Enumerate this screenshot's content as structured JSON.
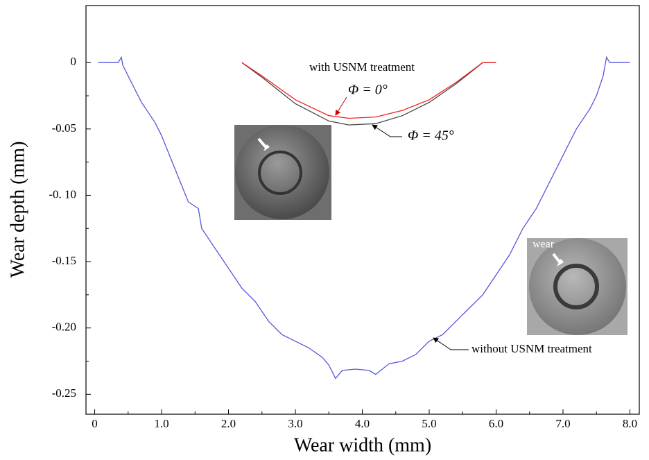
{
  "chart_data": {
    "type": "line",
    "xlabel": "Wear width (mm)",
    "ylabel": "Wear depth (mm)",
    "xlim": [
      -0.13,
      8.14
    ],
    "ylim": [
      -0.265,
      0.043
    ],
    "xticks": [
      0,
      {
        "value": 1,
        "label": "1.0"
      },
      {
        "value": 2,
        "label": "2.0"
      },
      {
        "value": 3,
        "label": "3.0"
      },
      {
        "value": 4,
        "label": "4.0"
      },
      {
        "value": 5,
        "label": "5.0"
      },
      {
        "value": 6,
        "label": "6.0"
      },
      {
        "value": 7,
        "label": "7.0"
      },
      {
        "value": 8,
        "label": "8.0"
      }
    ],
    "yticks": [
      0,
      -0.05,
      {
        "value": -0.1,
        "label": "-0. 10"
      },
      -0.15,
      {
        "value": -0.2,
        "label": "-0.20"
      },
      -0.25
    ],
    "series": [
      {
        "color": "#5555dd",
        "x": [
          0.05,
          0.35,
          0.4,
          0.42,
          0.6,
          0.7,
          0.9,
          1.0,
          1.2,
          1.4,
          1.55,
          1.6,
          1.8,
          2.0,
          2.2,
          2.4,
          2.6,
          2.8,
          3.0,
          3.2,
          3.4,
          3.5,
          3.6,
          3.7,
          3.9,
          4.1,
          4.2,
          4.4,
          4.6,
          4.8,
          5.0,
          5.2,
          5.4,
          5.6,
          5.8,
          6.0,
          6.2,
          6.4,
          6.6,
          6.8,
          7.0,
          7.2,
          7.4,
          7.5,
          7.6,
          7.65,
          7.7,
          8.0
        ],
        "values": [
          0,
          0,
          0.004,
          -0.002,
          -0.02,
          -0.03,
          -0.045,
          -0.055,
          -0.08,
          -0.105,
          -0.11,
          -0.125,
          -0.14,
          -0.155,
          -0.17,
          -0.18,
          -0.195,
          -0.205,
          -0.21,
          -0.215,
          -0.222,
          -0.228,
          -0.238,
          -0.232,
          -0.231,
          -0.232,
          -0.235,
          -0.227,
          -0.225,
          -0.22,
          -0.21,
          -0.205,
          -0.195,
          -0.185,
          -0.175,
          -0.16,
          -0.145,
          -0.125,
          -0.11,
          -0.09,
          -0.07,
          -0.05,
          -0.035,
          -0.025,
          -0.01,
          0.004,
          0,
          0
        ]
      },
      {
        "color": "#444444",
        "x": [
          2.2,
          2.5,
          3.0,
          3.5,
          3.8,
          4.2,
          4.6,
          5.0,
          5.4,
          5.8,
          6.0
        ],
        "values": [
          0,
          -0.011,
          -0.031,
          -0.044,
          -0.047,
          -0.046,
          -0.04,
          -0.03,
          -0.016,
          0,
          0
        ]
      },
      {
        "color": "#ee2222",
        "x": [
          2.2,
          2.5,
          3.0,
          3.5,
          3.8,
          4.2,
          4.6,
          5.0,
          5.4,
          5.8,
          6.0
        ],
        "values": [
          0,
          -0.01,
          -0.028,
          -0.04,
          -0.042,
          -0.041,
          -0.036,
          -0.028,
          -0.015,
          0,
          0
        ]
      }
    ],
    "annotations": [
      "with USNM treatment",
      "Φ = 0°",
      "Φ = 45°",
      "without USNM treatment",
      "wear"
    ]
  }
}
